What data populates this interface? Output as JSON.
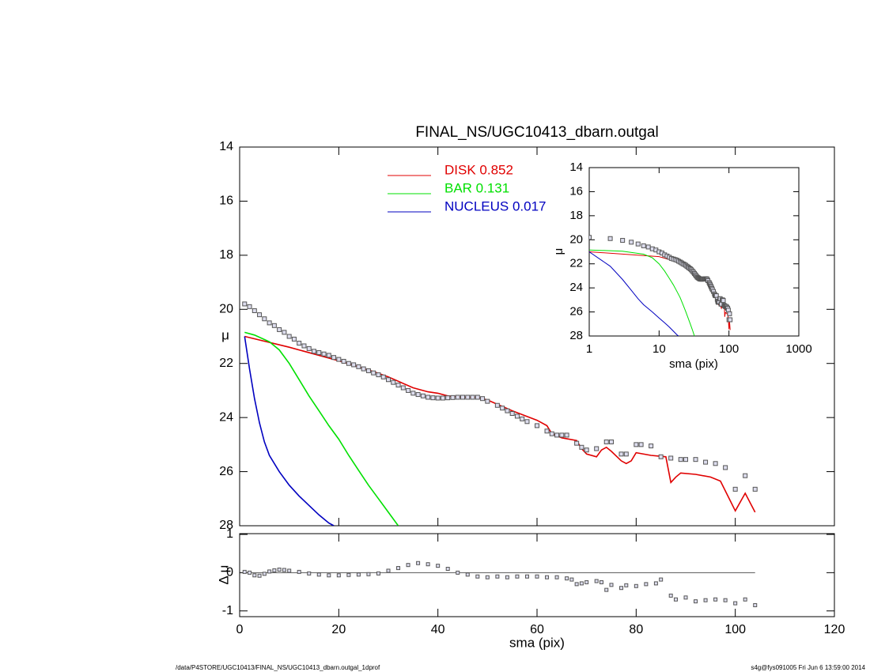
{
  "chart_data": [
    {
      "type": "line",
      "title": "FINAL_NS/UGC10413_dbarn.outgal",
      "ylabel": "μ",
      "xlim": [
        0,
        120
      ],
      "xticks": [
        0,
        20,
        40,
        60,
        80,
        100,
        120
      ],
      "ylim": [
        28,
        14
      ],
      "yticks": [
        14,
        16,
        18,
        20,
        22,
        24,
        26,
        28
      ],
      "legend": "upper center",
      "points": {
        "color": "#555555",
        "x": [
          1,
          2,
          3,
          4,
          5,
          6,
          7,
          8,
          9,
          10,
          11,
          12,
          13,
          14,
          15,
          16,
          17,
          18,
          19,
          20,
          21,
          22,
          23,
          24,
          25,
          26,
          27,
          28,
          29,
          30,
          31,
          32,
          33,
          34,
          35,
          36,
          37,
          38,
          39,
          40,
          41,
          42,
          43,
          44,
          45,
          46,
          47,
          48,
          49,
          50,
          52,
          53,
          54,
          55,
          56,
          57,
          58,
          60,
          62,
          63,
          64,
          65,
          66,
          68,
          69,
          70,
          72,
          74,
          75,
          77,
          78,
          80,
          81,
          83,
          85,
          87,
          89,
          90,
          92,
          94,
          96,
          98,
          100,
          102,
          104
        ],
        "values": [
          19.8,
          19.9,
          20.05,
          20.2,
          20.35,
          20.5,
          20.6,
          20.75,
          20.85,
          21.0,
          21.1,
          21.25,
          21.35,
          21.45,
          21.55,
          21.6,
          21.65,
          21.7,
          21.78,
          21.85,
          21.92,
          22.0,
          22.05,
          22.12,
          22.2,
          22.27,
          22.35,
          22.42,
          22.5,
          22.6,
          22.7,
          22.8,
          22.9,
          23.0,
          23.1,
          23.15,
          23.2,
          23.25,
          23.27,
          23.28,
          23.28,
          23.27,
          23.26,
          23.25,
          23.25,
          23.25,
          23.25,
          23.25,
          23.3,
          23.4,
          23.55,
          23.65,
          23.75,
          23.85,
          23.95,
          24.05,
          24.15,
          24.3,
          24.5,
          24.6,
          24.65,
          24.65,
          24.65,
          24.95,
          25.1,
          25.2,
          25.15,
          24.9,
          24.9,
          25.35,
          25.35,
          25.0,
          25.0,
          25.05,
          25.45,
          25.5,
          25.55,
          25.55,
          25.55,
          25.65,
          25.7,
          25.85,
          26.65,
          26.15,
          26.65
        ]
      },
      "series": [
        {
          "name": "DISK  0.852",
          "color": "#e00000",
          "x": [
            1,
            10,
            20,
            27,
            30,
            35,
            38,
            40,
            42,
            45,
            48,
            50,
            55,
            60,
            62,
            63,
            65,
            68,
            69,
            70,
            72,
            73,
            74,
            75,
            77,
            78,
            79,
            80,
            83,
            86,
            87,
            88,
            89,
            92,
            95,
            97,
            100,
            102,
            104
          ],
          "values": [
            21.0,
            21.4,
            21.9,
            22.3,
            22.5,
            22.9,
            23.05,
            23.1,
            23.2,
            23.25,
            23.25,
            23.35,
            23.75,
            24.1,
            24.3,
            24.6,
            24.75,
            24.85,
            25.15,
            25.35,
            25.45,
            25.2,
            25.1,
            25.25,
            25.6,
            25.7,
            25.6,
            25.3,
            25.4,
            25.45,
            26.4,
            26.2,
            26.05,
            26.1,
            26.2,
            26.35,
            27.45,
            26.8,
            27.5
          ]
        },
        {
          "name": "BAR  0.131",
          "color": "#00e000",
          "x": [
            1,
            3,
            6,
            8,
            10,
            12,
            14,
            16,
            18,
            20,
            22,
            24,
            26,
            28,
            30,
            32
          ],
          "values": [
            20.85,
            20.95,
            21.2,
            21.5,
            22.0,
            22.6,
            23.2,
            23.75,
            24.3,
            24.8,
            25.4,
            25.95,
            26.5,
            27.0,
            27.5,
            28.0
          ]
        },
        {
          "name": "NUCLEUS  0.017",
          "color": "#0000c0",
          "x": [
            1,
            2,
            3,
            4,
            5,
            6,
            8,
            10,
            12,
            14,
            16,
            18,
            19
          ],
          "values": [
            21.0,
            22.2,
            23.3,
            24.2,
            24.9,
            25.4,
            26.0,
            26.5,
            26.9,
            27.25,
            27.6,
            27.9,
            28.0
          ]
        }
      ]
    },
    {
      "type": "scatter",
      "xlabel": "sma (pix)",
      "ylabel": "Δ μ",
      "xlim": [
        0,
        120
      ],
      "xticks": [
        0,
        20,
        40,
        60,
        80,
        100,
        120
      ],
      "ylim": [
        -1.15,
        1.02
      ],
      "yticks": [
        -1,
        0,
        1
      ],
      "color": "#555555",
      "x": [
        1,
        2,
        3,
        4,
        5,
        6,
        7,
        8,
        9,
        10,
        12,
        14,
        16,
        18,
        20,
        22,
        24,
        26,
        28,
        30,
        32,
        34,
        36,
        38,
        40,
        42,
        44,
        46,
        48,
        50,
        52,
        54,
        56,
        58,
        60,
        62,
        64,
        66,
        67,
        68,
        69,
        70,
        72,
        73,
        74,
        75,
        77,
        78,
        80,
        82,
        84,
        85,
        87,
        88,
        90,
        92,
        94,
        96,
        98,
        100,
        102,
        104
      ],
      "values": [
        0.02,
        0.0,
        -0.07,
        -0.08,
        -0.03,
        0.03,
        0.06,
        0.08,
        0.07,
        0.05,
        0.02,
        -0.02,
        -0.05,
        -0.07,
        -0.07,
        -0.06,
        -0.05,
        -0.04,
        -0.02,
        0.05,
        0.12,
        0.2,
        0.25,
        0.22,
        0.18,
        0.1,
        0.0,
        -0.05,
        -0.1,
        -0.12,
        -0.1,
        -0.12,
        -0.1,
        -0.1,
        -0.1,
        -0.12,
        -0.12,
        -0.15,
        -0.18,
        -0.3,
        -0.28,
        -0.25,
        -0.22,
        -0.25,
        -0.45,
        -0.32,
        -0.4,
        -0.33,
        -0.35,
        -0.3,
        -0.28,
        -0.18,
        -0.6,
        -0.7,
        -0.65,
        -0.75,
        -0.72,
        -0.7,
        -0.72,
        -0.8,
        -0.7,
        -0.85
      ]
    },
    {
      "type": "inset",
      "xlabel": "sma (pix)",
      "ylabel": "μ",
      "xscale": "log",
      "xlim": [
        1,
        1000
      ],
      "xticks": [
        1,
        10,
        100,
        1000
      ],
      "ylim": [
        28,
        14
      ],
      "yticks": [
        14,
        16,
        18,
        20,
        22,
        24,
        26,
        28
      ]
    }
  ],
  "footer": {
    "left": "/data/P4STORE/UGC10413/FINAL_NS/UGC10413_dbarn.outgal_1dprof",
    "right": "s4g@fys091005  Fri Jun  6 13:59:00 2014"
  }
}
